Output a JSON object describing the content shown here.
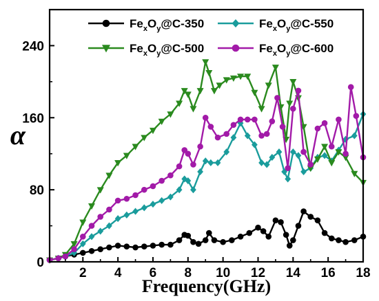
{
  "chart_data": {
    "type": "line",
    "title": "",
    "xlabel": "Frequency(GHz)",
    "ylabel": "α",
    "xlim": [
      0.1,
      18
    ],
    "ylim": [
      0,
      280
    ],
    "xticks": [
      "2",
      "4",
      "6",
      "8",
      "10",
      "12",
      "14",
      "16",
      "18"
    ],
    "yticks": [
      "0",
      "80",
      "160",
      "240"
    ],
    "legend_position": "top",
    "series": [
      {
        "name": "FexOy@C-350",
        "label_base": "Fe",
        "sub1": "x",
        "mid": "O",
        "sub2": "y",
        "suffix": "@C-350",
        "color": "#000000",
        "marker": "circle",
        "x": [
          0.1,
          0.6,
          1.0,
          1.5,
          2.0,
          2.5,
          3.0,
          3.5,
          4.0,
          4.5,
          5.0,
          5.5,
          6.0,
          6.5,
          7.0,
          7.5,
          7.8,
          8.0,
          8.3,
          8.6,
          9.0,
          9.2,
          9.5,
          10.0,
          10.5,
          11.0,
          11.5,
          12.0,
          12.3,
          12.6,
          13.0,
          13.3,
          13.6,
          13.8,
          14.0,
          14.3,
          14.6,
          15.0,
          15.4,
          15.8,
          16.2,
          16.6,
          17.0,
          17.5,
          18.0
        ],
        "y": [
          2,
          4,
          6,
          8,
          10,
          12,
          14,
          16,
          18,
          17,
          16,
          17,
          18,
          19,
          19,
          24,
          30,
          29,
          22,
          20,
          24,
          32,
          24,
          22,
          24,
          28,
          32,
          38,
          34,
          28,
          46,
          44,
          30,
          18,
          24,
          40,
          56,
          50,
          46,
          32,
          26,
          24,
          22,
          24,
          28
        ]
      },
      {
        "name": "FexOy@C-550",
        "label_base": "Fe",
        "sub1": "x",
        "mid": "O",
        "sub2": "y",
        "suffix": "@C-550",
        "color": "#1a9c9c",
        "marker": "diamond",
        "x": [
          0.1,
          0.6,
          1.0,
          1.5,
          2.0,
          2.5,
          3.0,
          3.5,
          4.0,
          4.5,
          5.0,
          5.5,
          6.0,
          6.5,
          7.0,
          7.5,
          7.8,
          8.0,
          8.3,
          8.7,
          9.0,
          9.3,
          9.7,
          10.2,
          10.6,
          11.0,
          11.4,
          11.8,
          12.2,
          12.5,
          12.8,
          13.2,
          13.5,
          13.7,
          14.0,
          14.3,
          14.6,
          15.0,
          15.4,
          15.8,
          16.2,
          16.6,
          17.0,
          17.5,
          18.0
        ],
        "y": [
          2,
          4,
          6,
          10,
          20,
          28,
          34,
          40,
          48,
          52,
          56,
          60,
          64,
          68,
          72,
          80,
          92,
          90,
          80,
          100,
          112,
          110,
          110,
          122,
          138,
          154,
          140,
          130,
          110,
          108,
          116,
          122,
          100,
          92,
          122,
          118,
          100,
          104,
          116,
          118,
          112,
          124,
          136,
          140,
          164
        ]
      },
      {
        "name": "FexOy@C-500",
        "label_base": "Fe",
        "sub1": "x",
        "mid": "O",
        "sub2": "y",
        "suffix": "@C-500",
        "color": "#2a8a1e",
        "marker": "triangle-down",
        "x": [
          0.1,
          0.6,
          1.0,
          1.5,
          2.0,
          2.5,
          3.0,
          3.5,
          4.0,
          4.5,
          5.0,
          5.5,
          6.0,
          6.5,
          7.0,
          7.5,
          7.8,
          8.0,
          8.3,
          8.7,
          9.0,
          9.2,
          9.5,
          9.8,
          10.2,
          10.6,
          11.0,
          11.4,
          11.8,
          12.2,
          12.6,
          13.0,
          13.3,
          13.6,
          13.8,
          14.0,
          14.3,
          14.6,
          15.0,
          15.4,
          15.8,
          16.2,
          16.6,
          17.0,
          17.5,
          18.0
        ],
        "y": [
          2,
          4,
          8,
          20,
          44,
          62,
          80,
          96,
          110,
          118,
          128,
          138,
          146,
          156,
          164,
          176,
          190,
          186,
          170,
          190,
          222,
          210,
          190,
          196,
          202,
          204,
          206,
          206,
          188,
          170,
          196,
          216,
          172,
          136,
          176,
          200,
          182,
          150,
          104,
          114,
          128,
          110,
          122,
          116,
          98,
          88
        ]
      },
      {
        "name": "FexOy@C-600",
        "label_base": "Fe",
        "sub1": "x",
        "mid": "O",
        "sub2": "y",
        "suffix": "@C-600",
        "color": "#a21aa8",
        "marker": "circle",
        "x": [
          0.1,
          0.6,
          1.0,
          1.5,
          2.0,
          2.5,
          3.0,
          3.5,
          4.0,
          4.5,
          5.0,
          5.5,
          6.0,
          6.5,
          7.0,
          7.5,
          7.8,
          8.0,
          8.3,
          8.7,
          9.0,
          9.3,
          9.7,
          10.2,
          10.6,
          11.0,
          11.4,
          11.8,
          12.2,
          12.5,
          12.8,
          13.1,
          13.4,
          13.7,
          14.0,
          14.3,
          14.6,
          15.0,
          15.4,
          15.8,
          16.2,
          16.6,
          17.0,
          17.3,
          17.6,
          18.0
        ],
        "y": [
          2,
          4,
          6,
          14,
          28,
          40,
          50,
          58,
          68,
          70,
          74,
          80,
          84,
          90,
          96,
          106,
          124,
          120,
          108,
          128,
          160,
          150,
          138,
          142,
          152,
          158,
          158,
          158,
          140,
          142,
          156,
          182,
          150,
          104,
          170,
          190,
          122,
          108,
          148,
          154,
          128,
          158,
          120,
          194,
          162,
          116
        ]
      }
    ]
  }
}
